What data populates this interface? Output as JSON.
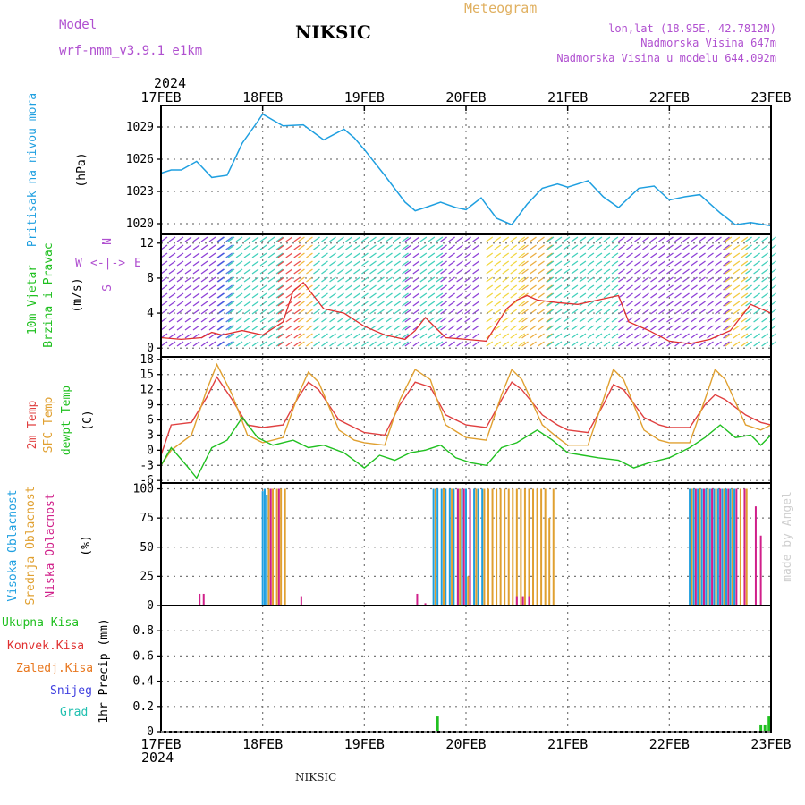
{
  "header": {
    "model_label": "Model",
    "model_value": "wrf-nmm_v3.9.1 e1km",
    "station": "NIKSIC",
    "product": "Meteogram",
    "lonlat": "lon,lat (18.95E, 42.7812N)",
    "elev": "Nadmorska Visina 647m",
    "elev_model": "Nadmorska Visina u modelu 644.092m",
    "year_top": "2024",
    "year_bottom": "2024",
    "footer_station": "NIKSIC",
    "credit": "made by Angel"
  },
  "colors": {
    "pressure": "#1e9fe0",
    "t2m": "#e04040",
    "sfc": "#e0a030",
    "dew": "#20c020",
    "high_cloud": "#1e9fe0",
    "mid_cloud": "#e0a030",
    "low_cloud": "#d0208a",
    "precip": "#20c020"
  },
  "chart_data": [
    {
      "type": "line",
      "title": "Pritisak na nivou mora",
      "ylabel": "(hPa)",
      "categories": [
        "17FEB",
        "18FEB",
        "19FEB",
        "20FEB",
        "21FEB",
        "22FEB",
        "23FEB"
      ],
      "ylim": [
        1019,
        1031
      ],
      "yticks": [
        1020,
        1023,
        1026,
        1029
      ],
      "series": [
        {
          "x": [
            0,
            0.1,
            0.2,
            0.35,
            0.5,
            0.65,
            0.8,
            0.95,
            1.0,
            1.2,
            1.4,
            1.6,
            1.8,
            1.9,
            2.0,
            2.2,
            2.4,
            2.5,
            2.6,
            2.75,
            2.9,
            3.0,
            3.15,
            3.3,
            3.45,
            3.6,
            3.75,
            3.9,
            4.0,
            4.2,
            4.35,
            4.5,
            4.7,
            4.85,
            5.0,
            5.15,
            5.3,
            5.5,
            5.65,
            5.8,
            6.0
          ],
          "y": [
            1024.7,
            1025.0,
            1025.0,
            1025.8,
            1024.3,
            1024.5,
            1027.5,
            1029.5,
            1030.2,
            1029.1,
            1029.2,
            1027.8,
            1028.8,
            1028.0,
            1026.9,
            1024.5,
            1022.0,
            1021.2,
            1021.5,
            1022.0,
            1021.5,
            1021.3,
            1022.4,
            1020.5,
            1019.9,
            1021.8,
            1023.3,
            1023.7,
            1023.4,
            1024.0,
            1022.5,
            1021.5,
            1023.3,
            1023.5,
            1022.2,
            1022.5,
            1022.7,
            1021.0,
            1019.9,
            1020.1,
            1019.8
          ]
        }
      ]
    },
    {
      "type": "line",
      "title": "10m Vjetar",
      "subtitle": "Brzina i Pravac",
      "ylabel": "(m/s)",
      "ylim": [
        -1,
        13
      ],
      "yticks": [
        0,
        4,
        8,
        12
      ],
      "series": [
        {
          "x": [
            0,
            0.2,
            0.4,
            0.5,
            0.6,
            0.8,
            1.0,
            1.2,
            1.3,
            1.4,
            1.5,
            1.6,
            1.8,
            2.0,
            2.2,
            2.4,
            2.5,
            2.6,
            2.8,
            3.0,
            3.2,
            3.4,
            3.5,
            3.6,
            3.7,
            3.9,
            4.1,
            4.3,
            4.5,
            4.6,
            4.8,
            5.0,
            5.2,
            5.4,
            5.6,
            5.8,
            5.9,
            6.0
          ],
          "y": [
            1.2,
            1.0,
            1.2,
            1.8,
            1.5,
            2.0,
            1.5,
            3.0,
            6.5,
            7.5,
            6.0,
            4.5,
            4.0,
            2.5,
            1.5,
            1.0,
            2.0,
            3.5,
            1.2,
            1.0,
            0.8,
            4.5,
            5.5,
            6.0,
            5.5,
            5.2,
            5.0,
            5.5,
            6.0,
            3.0,
            2.0,
            0.8,
            0.5,
            1.0,
            2.0,
            5.0,
            4.5,
            4.0
          ]
        }
      ]
    },
    {
      "type": "line",
      "title": "2m Temp",
      "ylabel": "(C)",
      "ylim": [
        -6.5,
        18.5
      ],
      "yticks": [
        -6,
        -3,
        0,
        3,
        6,
        9,
        12,
        15,
        18
      ],
      "series": [
        {
          "name": "2m Temp",
          "x": [
            0,
            0.1,
            0.3,
            0.45,
            0.55,
            0.7,
            0.85,
            1.0,
            1.2,
            1.35,
            1.45,
            1.55,
            1.75,
            1.9,
            2.0,
            2.2,
            2.35,
            2.5,
            2.65,
            2.8,
            3.0,
            3.2,
            3.35,
            3.45,
            3.55,
            3.75,
            3.9,
            4.0,
            4.2,
            4.35,
            4.45,
            4.55,
            4.75,
            4.9,
            5.0,
            5.2,
            5.35,
            5.45,
            5.55,
            5.75,
            5.9,
            6.0
          ],
          "y": [
            -1.0,
            5.0,
            5.5,
            10.5,
            14.5,
            10.0,
            5.0,
            4.5,
            5.0,
            10.5,
            13.5,
            12.0,
            6.0,
            4.5,
            3.5,
            3.0,
            9.0,
            13.5,
            12.5,
            7.0,
            5.0,
            4.5,
            10.0,
            13.5,
            12.0,
            7.0,
            5.0,
            4.0,
            3.5,
            9.0,
            13.0,
            12.0,
            6.5,
            5.0,
            4.5,
            4.5,
            9.0,
            11.0,
            10.0,
            7.0,
            5.5,
            5.0
          ]
        },
        {
          "name": "SFC Temp",
          "x": [
            0,
            0.1,
            0.3,
            0.45,
            0.55,
            0.7,
            0.85,
            1.0,
            1.2,
            1.35,
            1.45,
            1.55,
            1.75,
            1.9,
            2.0,
            2.2,
            2.35,
            2.5,
            2.65,
            2.8,
            3.0,
            3.2,
            3.35,
            3.45,
            3.55,
            3.75,
            3.9,
            4.0,
            4.2,
            4.35,
            4.45,
            4.55,
            4.75,
            4.9,
            5.0,
            5.2,
            5.35,
            5.45,
            5.55,
            5.75,
            5.9,
            6.0
          ],
          "y": [
            -3.0,
            0.0,
            3.0,
            12.0,
            17.0,
            11.0,
            3.0,
            1.5,
            2.5,
            11.0,
            15.5,
            13.5,
            4.0,
            2.0,
            1.5,
            1.0,
            10.0,
            16.0,
            14.0,
            5.0,
            2.5,
            2.0,
            11.0,
            16.0,
            14.0,
            5.0,
            2.5,
            1.0,
            1.0,
            10.0,
            16.0,
            14.0,
            4.0,
            2.0,
            1.5,
            1.5,
            10.0,
            16.0,
            14.0,
            5.0,
            4.0,
            5.0
          ]
        },
        {
          "name": "dewpt Temp",
          "x": [
            0,
            0.1,
            0.25,
            0.35,
            0.5,
            0.65,
            0.8,
            0.95,
            1.1,
            1.3,
            1.45,
            1.6,
            1.8,
            2.0,
            2.15,
            2.3,
            2.45,
            2.6,
            2.75,
            2.9,
            3.05,
            3.2,
            3.35,
            3.5,
            3.7,
            3.85,
            4.0,
            4.15,
            4.3,
            4.5,
            4.65,
            4.8,
            5.0,
            5.2,
            5.35,
            5.5,
            5.65,
            5.8,
            5.9,
            6.0
          ],
          "y": [
            -3.0,
            0.5,
            -3.0,
            -5.5,
            0.5,
            2.0,
            6.5,
            2.5,
            1.0,
            2.0,
            0.5,
            1.0,
            -0.5,
            -3.5,
            -1.0,
            -2.0,
            -0.5,
            0.0,
            1.0,
            -1.5,
            -2.5,
            -3.0,
            0.5,
            1.5,
            4.0,
            2.0,
            -0.5,
            -1.0,
            -1.5,
            -2.0,
            -3.5,
            -2.5,
            -1.5,
            0.5,
            2.5,
            5.0,
            2.5,
            3.0,
            1.0,
            3.0
          ]
        }
      ]
    },
    {
      "type": "bar",
      "title": "Visoka Oblacnost",
      "ylabel": "(%)",
      "ylim": [
        0,
        105
      ],
      "yticks": [
        0,
        25,
        50,
        75,
        100
      ],
      "series": [
        {
          "name": "Visoka Oblacnost",
          "x": [
            1.0,
            1.02,
            1.04,
            2.68,
            2.72,
            2.76,
            2.8,
            2.84,
            2.88,
            2.92,
            2.96,
            3.0,
            3.04,
            3.08,
            3.12,
            3.16,
            5.2,
            5.24,
            5.28,
            5.32,
            5.36,
            5.4,
            5.44,
            5.48,
            5.52,
            5.56,
            5.6,
            5.64
          ],
          "values": [
            98,
            100,
            95,
            100,
            100,
            100,
            100,
            100,
            100,
            100,
            100,
            100,
            98,
            100,
            100,
            100,
            100,
            100,
            100,
            100,
            100,
            100,
            100,
            100,
            100,
            100,
            100,
            100
          ]
        },
        {
          "name": "Srednja Oblacnost",
          "x": [
            1.06,
            1.1,
            1.14,
            1.18,
            1.22,
            2.7,
            2.78,
            2.86,
            2.94,
            3.02,
            3.1,
            3.18,
            3.22,
            3.26,
            3.3,
            3.34,
            3.38,
            3.42,
            3.46,
            3.5,
            3.54,
            3.58,
            3.62,
            3.66,
            3.7,
            3.74,
            3.78,
            3.82,
            3.86,
            5.22,
            5.3,
            5.38,
            5.46,
            5.54,
            5.62,
            5.7,
            5.76
          ],
          "values": [
            100,
            100,
            100,
            100,
            100,
            100,
            100,
            100,
            100,
            25,
            100,
            100,
            100,
            100,
            100,
            100,
            100,
            100,
            100,
            100,
            100,
            100,
            100,
            100,
            100,
            100,
            100,
            75,
            100,
            100,
            100,
            100,
            100,
            100,
            100,
            100,
            100
          ]
        },
        {
          "name": "Niska Oblacnost",
          "x": [
            0.38,
            0.42,
            1.08,
            1.16,
            1.38,
            2.52,
            2.6,
            2.92,
            2.98,
            3.04,
            3.5,
            3.56,
            3.62,
            5.26,
            5.34,
            5.42,
            5.5,
            5.58,
            5.66,
            5.74,
            5.85,
            5.9
          ],
          "values": [
            10,
            10,
            100,
            100,
            8,
            10,
            2,
            100,
            100,
            100,
            8,
            8,
            8,
            100,
            100,
            100,
            100,
            100,
            100,
            100,
            85,
            60
          ]
        }
      ]
    },
    {
      "type": "bar",
      "title": "Ukupna Kisa",
      "ylabel": "1hr Precip (mm)",
      "ylim": [
        0,
        1.0
      ],
      "yticks": [
        0,
        0.2,
        0.4,
        0.6,
        0.8
      ],
      "legend": [
        "Ukupna Kisa",
        "Konvek.Kisa",
        "Zaledj.Kisa",
        "Snijeg",
        "Grad"
      ],
      "series": [
        {
          "name": "Ukupna Kisa",
          "x": [
            2.72,
            5.9,
            5.94,
            5.98
          ],
          "values": [
            0.12,
            0.05,
            0.05,
            0.12
          ]
        }
      ]
    }
  ],
  "labels": {
    "panel1": [
      "Pritisak na nivou mora",
      "(hPa)"
    ],
    "panel2": [
      "10m Vjetar",
      "Brzina i Pravac",
      "(m/s)"
    ],
    "panel2_compass": [
      "W",
      "E",
      "N",
      "S"
    ],
    "panel3": [
      "2m Temp",
      "SFC Temp",
      "dewpt Temp",
      "(C)"
    ],
    "panel4": [
      "Visoka Oblacnost",
      "Srednja Oblacnost",
      "Niska Oblacnost",
      "(%)"
    ],
    "panel5": [
      "Ukupna Kisa",
      "Konvek.Kisa",
      "Zaledj.Kisa",
      "Snijeg",
      "Grad",
      "1hr Precip (mm)"
    ]
  }
}
